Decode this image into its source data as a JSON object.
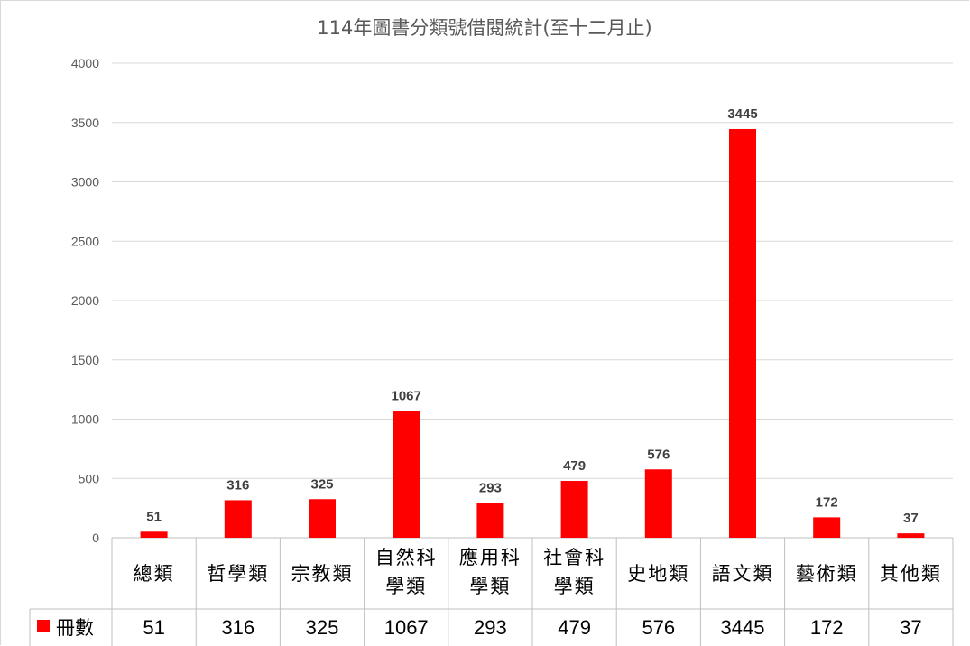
{
  "chart_data": {
    "type": "bar",
    "title": "114年圖書分類號借閱統計(至十二月止)",
    "categories": [
      "總類",
      "哲學類",
      "宗教類",
      "自然科學類",
      "應用科學類",
      "社會科學類",
      "史地類",
      "語文類",
      "藝術類",
      "其他類"
    ],
    "category_lines": [
      [
        "總類"
      ],
      [
        "哲學類"
      ],
      [
        "宗教類"
      ],
      [
        "自然科",
        "學類"
      ],
      [
        "應用科",
        "學類"
      ],
      [
        "社會科",
        "學類"
      ],
      [
        "史地類"
      ],
      [
        "語文類"
      ],
      [
        "藝術類"
      ],
      [
        "其他類"
      ]
    ],
    "series": [
      {
        "name": "冊數",
        "color": "#ff0000",
        "values": [
          51,
          316,
          325,
          1067,
          293,
          479,
          576,
          3445,
          172,
          37
        ]
      }
    ],
    "ylim": [
      0,
      4000
    ],
    "yticks": [
      0,
      500,
      1000,
      1500,
      2000,
      2500,
      3000,
      3500,
      4000
    ],
    "grid": true,
    "data_labels": true,
    "legend": "data-table",
    "xlabel": "",
    "ylabel": ""
  }
}
